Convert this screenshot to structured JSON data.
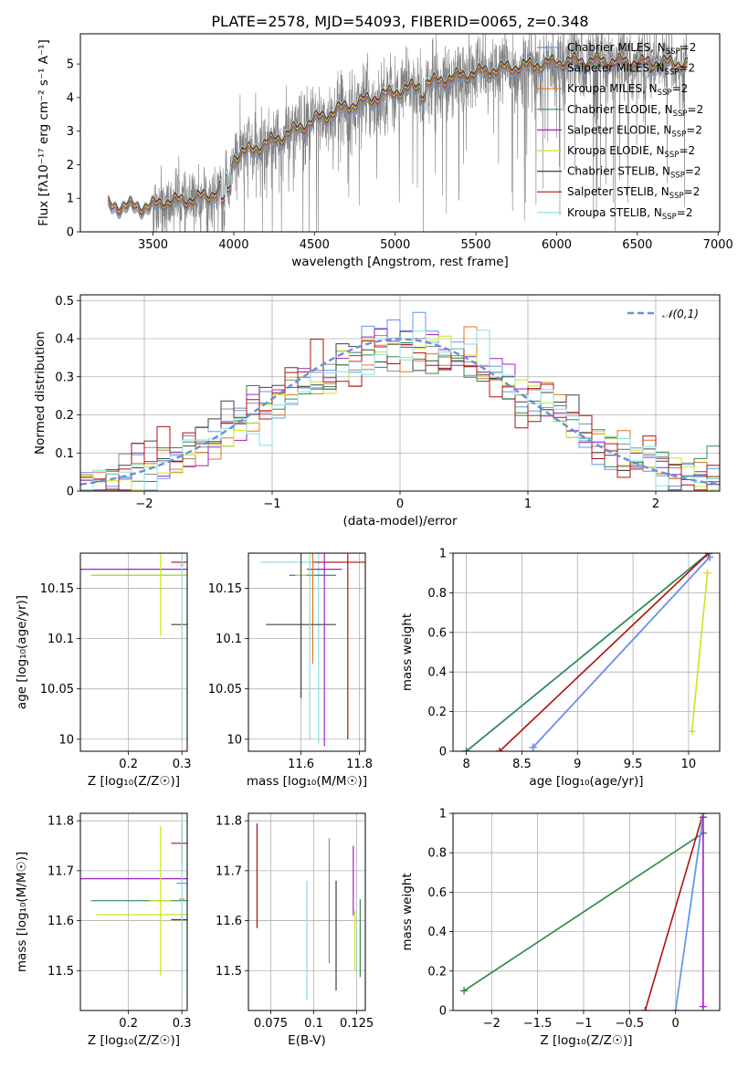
{
  "figure": {
    "title": "PLATE=2578, MJD=54093, FIBERID=0065, z=0.348"
  },
  "models": [
    {
      "name": "Chabrier MILES",
      "color": "#6495ed"
    },
    {
      "name": "Salpeter MILES",
      "color": "#8b8b8b"
    },
    {
      "name": "Kroupa MILES",
      "color": "#e2761d"
    },
    {
      "name": "Chabrier ELODIE",
      "color": "#2e8b57"
    },
    {
      "name": "Salpeter ELODIE",
      "color": "#a020c8"
    },
    {
      "name": "Kroupa ELODIE",
      "color": "#c8e61e"
    },
    {
      "name": "Chabrier STELIB",
      "color": "#404040"
    },
    {
      "name": "Salpeter STELIB",
      "color": "#b01010"
    },
    {
      "name": "Kroupa STELIB",
      "color": "#88dde0"
    }
  ],
  "nssp_suffix": "=2",
  "chart_data": [
    {
      "id": "spectrum",
      "type": "line",
      "xlabel": "wavelength [Angstrom, rest frame]",
      "ylabel": "Flux [fλ10⁻¹⁷ erg cm⁻² s⁻¹ A⁻¹]",
      "xlim": [
        3050,
        7010
      ],
      "ylim": [
        0,
        5.9
      ],
      "xticks": [
        3500,
        4000,
        4500,
        5000,
        5500,
        6000,
        6500,
        7000
      ],
      "yticks": [
        0,
        1,
        2,
        3,
        4,
        5
      ],
      "grid": false,
      "legend": "right",
      "data_color": "#808080",
      "continuum_knots": [
        [
          3220,
          0.75
        ],
        [
          3480,
          0.72
        ],
        [
          3560,
          0.85
        ],
        [
          3700,
          0.9
        ],
        [
          3850,
          1.05
        ],
        [
          3950,
          1.4
        ],
        [
          4000,
          2.2
        ],
        [
          4100,
          2.4
        ],
        [
          4300,
          2.8
        ],
        [
          4500,
          3.3
        ],
        [
          4700,
          3.7
        ],
        [
          4900,
          4.0
        ],
        [
          5100,
          4.25
        ],
        [
          5300,
          4.5
        ],
        [
          5500,
          4.7
        ],
        [
          5700,
          4.85
        ],
        [
          5900,
          4.95
        ],
        [
          6100,
          5.05
        ],
        [
          6300,
          5.05
        ],
        [
          6500,
          5.0
        ],
        [
          6700,
          5.0
        ],
        [
          6810,
          4.95
        ]
      ]
    },
    {
      "id": "residuals",
      "type": "histogram",
      "xlabel": "(data-model)/error",
      "ylabel": "Normed distribution",
      "xlim": [
        -2.5,
        2.5
      ],
      "ylim": [
        0,
        0.515
      ],
      "xticks": [
        -2,
        -1,
        0,
        1,
        2
      ],
      "yticks": [
        0.0,
        0.1,
        0.2,
        0.3,
        0.4,
        0.5
      ],
      "grid": true,
      "legend": "top-right",
      "gaussian_label": "𝒩(0,1)",
      "gaussian_color": "#6a8fd8"
    },
    {
      "id": "age-vs-Z",
      "type": "errorbar",
      "xlabel": "Z [log₁₀(Z/Z☉)]",
      "ylabel": "age  [log₁₀(age/yr)]",
      "xlim": [
        0.11,
        0.31
      ],
      "ylim": [
        9.988,
        10.185
      ],
      "xticks": [
        0.2,
        0.3
      ],
      "yticks": [
        10.0,
        10.05,
        10.1,
        10.15
      ],
      "grid": true,
      "points": [
        {
          "model": 4,
          "x": 0.3,
          "y": 10.169,
          "xerr": 0.19,
          "yerr": 0.0
        },
        {
          "model": 3,
          "x": 0.3,
          "y": 10.163,
          "xerr": 0.17,
          "yerr": 0.0
        },
        {
          "model": 5,
          "x": 0.26,
          "y": 10.163,
          "xerr": 0.13,
          "yerr": 0.06
        },
        {
          "model": 6,
          "x": 0.3,
          "y": 10.114,
          "xerr": 0.02,
          "yerr": 0.0
        },
        {
          "model": 7,
          "x": 0.3,
          "y": 10.176,
          "xerr": 0.02,
          "yerr": 0.0
        },
        {
          "model": 0,
          "x": 0.3,
          "y": 10.0,
          "xerr": 0.0,
          "yerr": 0.0
        },
        {
          "model": 8,
          "x": 0.3,
          "y": 10.173,
          "xerr": 0.005,
          "yerr": 0.175
        }
      ]
    },
    {
      "id": "age-vs-mass",
      "type": "errorbar",
      "xlabel": "mass [log₁₀(M/M☉)]",
      "ylabel": "",
      "xlim": [
        11.42,
        11.82
      ],
      "ylim": [
        9.988,
        10.185
      ],
      "xticks": [
        11.6,
        11.8
      ],
      "yticks": [
        10.0,
        10.05,
        10.1,
        10.15
      ],
      "grid": true,
      "points": [
        {
          "model": 8,
          "x": 11.66,
          "y": 10.176,
          "xerr": 0.2,
          "yerr": 0.18
        },
        {
          "model": 7,
          "x": 11.76,
          "y": 10.176,
          "xerr": 0.12,
          "yerr": 0.176
        },
        {
          "model": 4,
          "x": 11.68,
          "y": 10.169,
          "xerr": 0.06,
          "yerr": 0.0
        },
        {
          "model": 3,
          "x": 11.64,
          "y": 10.163,
          "xerr": 0.08,
          "yerr": 0.0
        },
        {
          "model": 5,
          "x": 11.6,
          "y": 10.163,
          "xerr": 0.02,
          "yerr": 0.0
        },
        {
          "model": 2,
          "x": 11.64,
          "y": 10.163,
          "xerr": 0.0,
          "yerr": 0.088
        },
        {
          "model": 6,
          "x": 11.6,
          "y": 10.114,
          "xerr": 0.12,
          "yerr": 0.073
        },
        {
          "model": 4,
          "x": 11.68,
          "y": 10.169,
          "xerr": 0.0,
          "yerr": 0.176
        },
        {
          "model": 8,
          "x": 11.63,
          "y": 10.169,
          "xerr": 0.0,
          "yerr": 0.169
        }
      ]
    },
    {
      "id": "weight-vs-age",
      "type": "line",
      "xlabel": "age  [log₁₀(age/yr)]",
      "ylabel": "mass weight",
      "xlim": [
        7.88,
        10.28
      ],
      "ylim": [
        0.0,
        1.0
      ],
      "xticks": [
        8.0,
        8.5,
        9.0,
        9.5,
        10.0
      ],
      "yticks": [
        0.0,
        0.2,
        0.4,
        0.6,
        0.8,
        1.0
      ],
      "grid": true,
      "series": [
        {
          "model": 6,
          "x": [
            8.0,
            10.18
          ],
          "y": [
            0.0,
            1.0
          ]
        },
        {
          "model": 8,
          "x": [
            8.0,
            10.18
          ],
          "y": [
            0.0,
            1.0
          ]
        },
        {
          "model": 3,
          "x": [
            8.0,
            10.18
          ],
          "y": [
            0.0,
            1.0
          ]
        },
        {
          "model": 7,
          "x": [
            8.3,
            10.18
          ],
          "y": [
            0.0,
            1.0
          ]
        },
        {
          "model": 4,
          "x": [
            8.6,
            10.19
          ],
          "y": [
            0.02,
            0.98
          ]
        },
        {
          "model": 0,
          "x": [
            8.6,
            10.19
          ],
          "y": [
            0.02,
            0.98
          ]
        },
        {
          "model": 5,
          "x": [
            10.03,
            10.17
          ],
          "y": [
            0.1,
            0.9
          ]
        }
      ]
    },
    {
      "id": "mass-vs-Z",
      "type": "errorbar",
      "xlabel": "Z [log₁₀(Z/Z☉)]",
      "ylabel": "mass [log₁₀(M/M☉)]",
      "xlim": [
        0.11,
        0.31
      ],
      "ylim": [
        11.42,
        11.815
      ],
      "xticks": [
        0.2,
        0.3
      ],
      "yticks": [
        11.5,
        11.6,
        11.7,
        11.8
      ],
      "grid": true,
      "points": [
        {
          "model": 7,
          "x": 0.3,
          "y": 11.755,
          "xerr": 0.02,
          "yerr": 0.04
        },
        {
          "model": 4,
          "x": 0.3,
          "y": 11.684,
          "xerr": 0.19,
          "yerr": 0.0
        },
        {
          "model": 0,
          "x": 0.3,
          "y": 11.675,
          "xerr": 0.01,
          "yerr": 0.0
        },
        {
          "model": 2,
          "x": 0.3,
          "y": 11.643,
          "xerr": 0.005,
          "yerr": 0.0
        },
        {
          "model": 3,
          "x": 0.3,
          "y": 11.64,
          "xerr": 0.17,
          "yerr": 0.0
        },
        {
          "model": 5,
          "x": 0.26,
          "y": 11.64,
          "xerr": 0.02,
          "yerr": 0.15
        },
        {
          "model": 5,
          "x": 0.26,
          "y": 11.612,
          "xerr": 0.12,
          "yerr": 0.0
        },
        {
          "model": 6,
          "x": 0.3,
          "y": 11.602,
          "xerr": 0.02,
          "yerr": 0.0
        },
        {
          "model": 8,
          "x": 0.3,
          "y": 11.64,
          "xerr": 0.0,
          "yerr": 0.18
        }
      ]
    },
    {
      "id": "mass-vs-EBV",
      "type": "errorbar",
      "xlabel": "E(B-V)",
      "ylabel": "",
      "xlim": [
        0.062,
        0.13
      ],
      "ylim": [
        11.42,
        11.815
      ],
      "xticks": [
        0.075,
        0.1,
        0.125
      ],
      "yticks": [
        11.5,
        11.6,
        11.7,
        11.8
      ],
      "grid": true,
      "points": [
        {
          "model": 7,
          "x": 0.067,
          "y": 11.69,
          "xerr": 0.0,
          "yerr": 0.105
        },
        {
          "model": 8,
          "x": 0.096,
          "y": 11.56,
          "xerr": 0.0,
          "yerr": 0.12
        },
        {
          "model": 1,
          "x": 0.109,
          "y": 11.64,
          "xerr": 0.0,
          "yerr": 0.125
        },
        {
          "model": 6,
          "x": 0.113,
          "y": 11.57,
          "xerr": 0.0,
          "yerr": 0.11
        },
        {
          "model": 4,
          "x": 0.123,
          "y": 11.68,
          "xerr": 0.0,
          "yerr": 0.07
        },
        {
          "model": 5,
          "x": 0.124,
          "y": 11.56,
          "xerr": 0.0,
          "yerr": 0.06
        },
        {
          "model": 3,
          "x": 0.127,
          "y": 11.565,
          "xerr": 0.0,
          "yerr": 0.078
        }
      ]
    },
    {
      "id": "weight-vs-Z",
      "type": "line",
      "xlabel": "Z [log₁₀(Z/Z☉)]",
      "ylabel": "mass weight",
      "xlim": [
        -2.42,
        0.48
      ],
      "ylim": [
        0.0,
        1.0
      ],
      "xticks": [
        -2.0,
        -1.5,
        -1.0,
        -0.5,
        0.0
      ],
      "yticks": [
        0.0,
        0.2,
        0.4,
        0.6,
        0.8,
        1.0
      ],
      "grid": true,
      "series": [
        {
          "model": 5,
          "x": [
            -2.3,
            0.3
          ],
          "y": [
            0.1,
            0.9
          ]
        },
        {
          "model": 3,
          "x": [
            -2.3,
            0.3
          ],
          "y": [
            0.1,
            0.9
          ]
        },
        {
          "model": 7,
          "x": [
            -0.33,
            0.3
          ],
          "y": [
            0.0,
            1.0
          ]
        },
        {
          "model": 8,
          "x": [
            0.0,
            0.3
          ],
          "y": [
            0.0,
            1.0
          ]
        },
        {
          "model": 0,
          "x": [
            0.0,
            0.3
          ],
          "y": [
            0.0,
            0.98
          ]
        },
        {
          "model": 4,
          "x": [
            0.3,
            0.3
          ],
          "y": [
            0.02,
            0.98
          ]
        }
      ]
    }
  ]
}
